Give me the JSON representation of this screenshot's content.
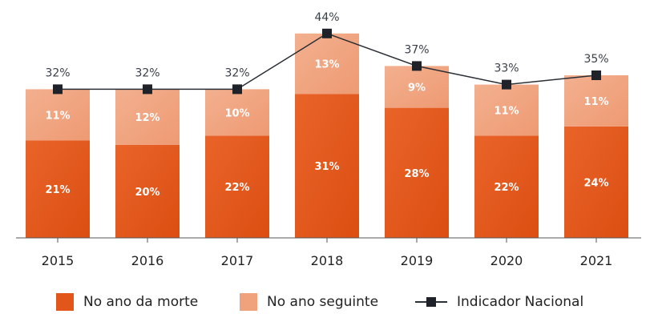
{
  "chart_data": {
    "type": "bar",
    "stacked": true,
    "title": "",
    "xlabel": "",
    "ylabel": "",
    "ylim": [
      0,
      47
    ],
    "grid": false,
    "legend_position": "bottom",
    "categories": [
      "2015",
      "2016",
      "2017",
      "2018",
      "2019",
      "2020",
      "2021"
    ],
    "series": [
      {
        "name": "No ano da morte",
        "type": "bar",
        "color": "#e2561c",
        "values": [
          21,
          20,
          22,
          31,
          28,
          22,
          24
        ],
        "labels": [
          "21%",
          "20%",
          "22%",
          "31%",
          "28%",
          "22%",
          "24%"
        ]
      },
      {
        "name": "No ano seguinte",
        "type": "bar",
        "color": "#f0a27d",
        "values": [
          11,
          12,
          10,
          13,
          9,
          11,
          11
        ],
        "labels": [
          "11%",
          "12%",
          "10%",
          "13%",
          "9%",
          "11%",
          "11%"
        ]
      },
      {
        "name": "Indicador Nacional",
        "type": "line",
        "color": "#2b2f36",
        "values": [
          32,
          32,
          32,
          44,
          37,
          33,
          35
        ],
        "labels": [
          "32%",
          "32%",
          "32%",
          "44%",
          "37%",
          "33%",
          "35%"
        ]
      }
    ]
  }
}
